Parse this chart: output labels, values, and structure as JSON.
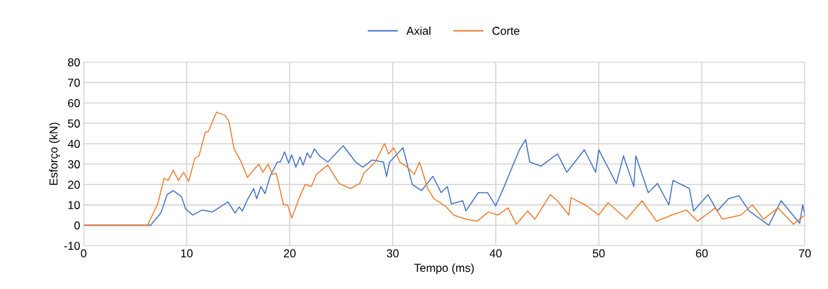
{
  "chart_data": {
    "type": "line",
    "xlabel": "Tempo (ms)",
    "ylabel": "Esforço (kN)",
    "xlim": [
      0,
      70
    ],
    "xticks": [
      0,
      10,
      20,
      30,
      40,
      50,
      60,
      70
    ],
    "ylim": [
      -10,
      80
    ],
    "yticks": [
      -10,
      0,
      10,
      20,
      30,
      40,
      50,
      60,
      70,
      80
    ],
    "grid": true,
    "legend": "top",
    "marker": "none",
    "line_style": "solid",
    "series": [
      {
        "name": "Axial",
        "color": "#4472c4",
        "x": [
          0,
          6.5,
          7.5,
          8.1,
          8.7,
          9.5,
          9.9,
          10.6,
          11.5,
          12.5,
          14.0,
          14.7,
          15.1,
          15.4,
          15.9,
          16.5,
          16.8,
          17.2,
          17.6,
          18.1,
          18.8,
          19.1,
          19.5,
          19.9,
          20.2,
          20.6,
          21.0,
          21.3,
          21.7,
          22.0,
          22.4,
          22.9,
          23.7,
          25.2,
          26.4,
          27.1,
          28.0,
          29.1,
          29.4,
          29.7,
          31.0,
          31.9,
          32.8,
          33.9,
          34.7,
          35.3,
          35.7,
          36.8,
          37.1,
          38.3,
          39.2,
          40.0,
          40.9,
          41.8,
          42.3,
          42.9,
          43.3,
          44.4,
          46.0,
          46.9,
          48.6,
          49.7,
          50.0,
          51.7,
          52.4,
          53.4,
          53.6,
          54.8,
          55.7,
          56.8,
          57.2,
          58.8,
          59.2,
          60.6,
          61.5,
          62.6,
          63.6,
          64.6,
          66.5,
          67.7,
          69.5,
          69.8,
          70
        ],
        "values": [
          0,
          0,
          6,
          15,
          17,
          14,
          8,
          5,
          7.5,
          6.5,
          11.5,
          6,
          9,
          7,
          12.5,
          18,
          13,
          19,
          15.5,
          24,
          31,
          31,
          36,
          30.5,
          34.5,
          28.5,
          33.5,
          29.5,
          35.5,
          33,
          37.5,
          34,
          31,
          39,
          31,
          28.5,
          32,
          31,
          24,
          31,
          38,
          20,
          17,
          24,
          16,
          19,
          10.5,
          12,
          7,
          16,
          16,
          9.5,
          20,
          31,
          37,
          42,
          31,
          29,
          35,
          26,
          37,
          26,
          37,
          20.5,
          34,
          19,
          34,
          16,
          20.5,
          10,
          22,
          18,
          7,
          15,
          7,
          13,
          14.5,
          7,
          0,
          12,
          1,
          10,
          5
        ]
      },
      {
        "name": "Corte",
        "color": "#ed7d31",
        "x": [
          0,
          6.2,
          7.2,
          7.8,
          8.2,
          8.7,
          9.2,
          9.7,
          10.2,
          10.8,
          11.2,
          11.8,
          12.1,
          12.9,
          13.7,
          14.1,
          14.6,
          15.2,
          15.9,
          16.4,
          17.0,
          17.4,
          17.9,
          18.3,
          18.7,
          19.4,
          19.8,
          20.2,
          20.9,
          21.5,
          22.1,
          22.6,
          23.7,
          24.8,
          25.9,
          26.8,
          27.2,
          28.3,
          29.2,
          29.6,
          30.1,
          30.7,
          31.4,
          32.1,
          32.6,
          33.4,
          34.0,
          35.2,
          35.9,
          37.1,
          38.2,
          39.3,
          40.2,
          41.2,
          42.0,
          43.1,
          43.8,
          45.3,
          46.0,
          47.1,
          47.3,
          48.7,
          50.0,
          50.9,
          52.7,
          54.2,
          55.6,
          57.1,
          58.5,
          59.6,
          61.3,
          62.0,
          63.8,
          64.9,
          66.0,
          67.4,
          68.9,
          70
        ],
        "values": [
          0,
          0,
          10.5,
          23,
          22,
          27,
          22,
          26,
          21.5,
          33,
          34,
          45.5,
          46,
          55.5,
          54,
          51,
          37.5,
          32,
          23.5,
          26.5,
          30,
          26,
          30,
          25,
          25.5,
          10,
          10,
          3.5,
          13,
          20,
          19,
          25,
          29.5,
          20.5,
          18,
          20.5,
          25.5,
          31,
          40,
          35,
          38,
          31,
          28.5,
          25,
          31,
          18,
          13,
          9,
          5,
          3,
          2,
          6.5,
          5,
          8.5,
          0.5,
          7,
          3,
          15,
          12,
          5,
          13.5,
          10,
          5,
          11,
          3,
          12,
          2,
          5,
          7.5,
          2,
          8.5,
          3,
          5,
          10,
          3,
          8.5,
          0.5,
          5
        ]
      }
    ]
  }
}
